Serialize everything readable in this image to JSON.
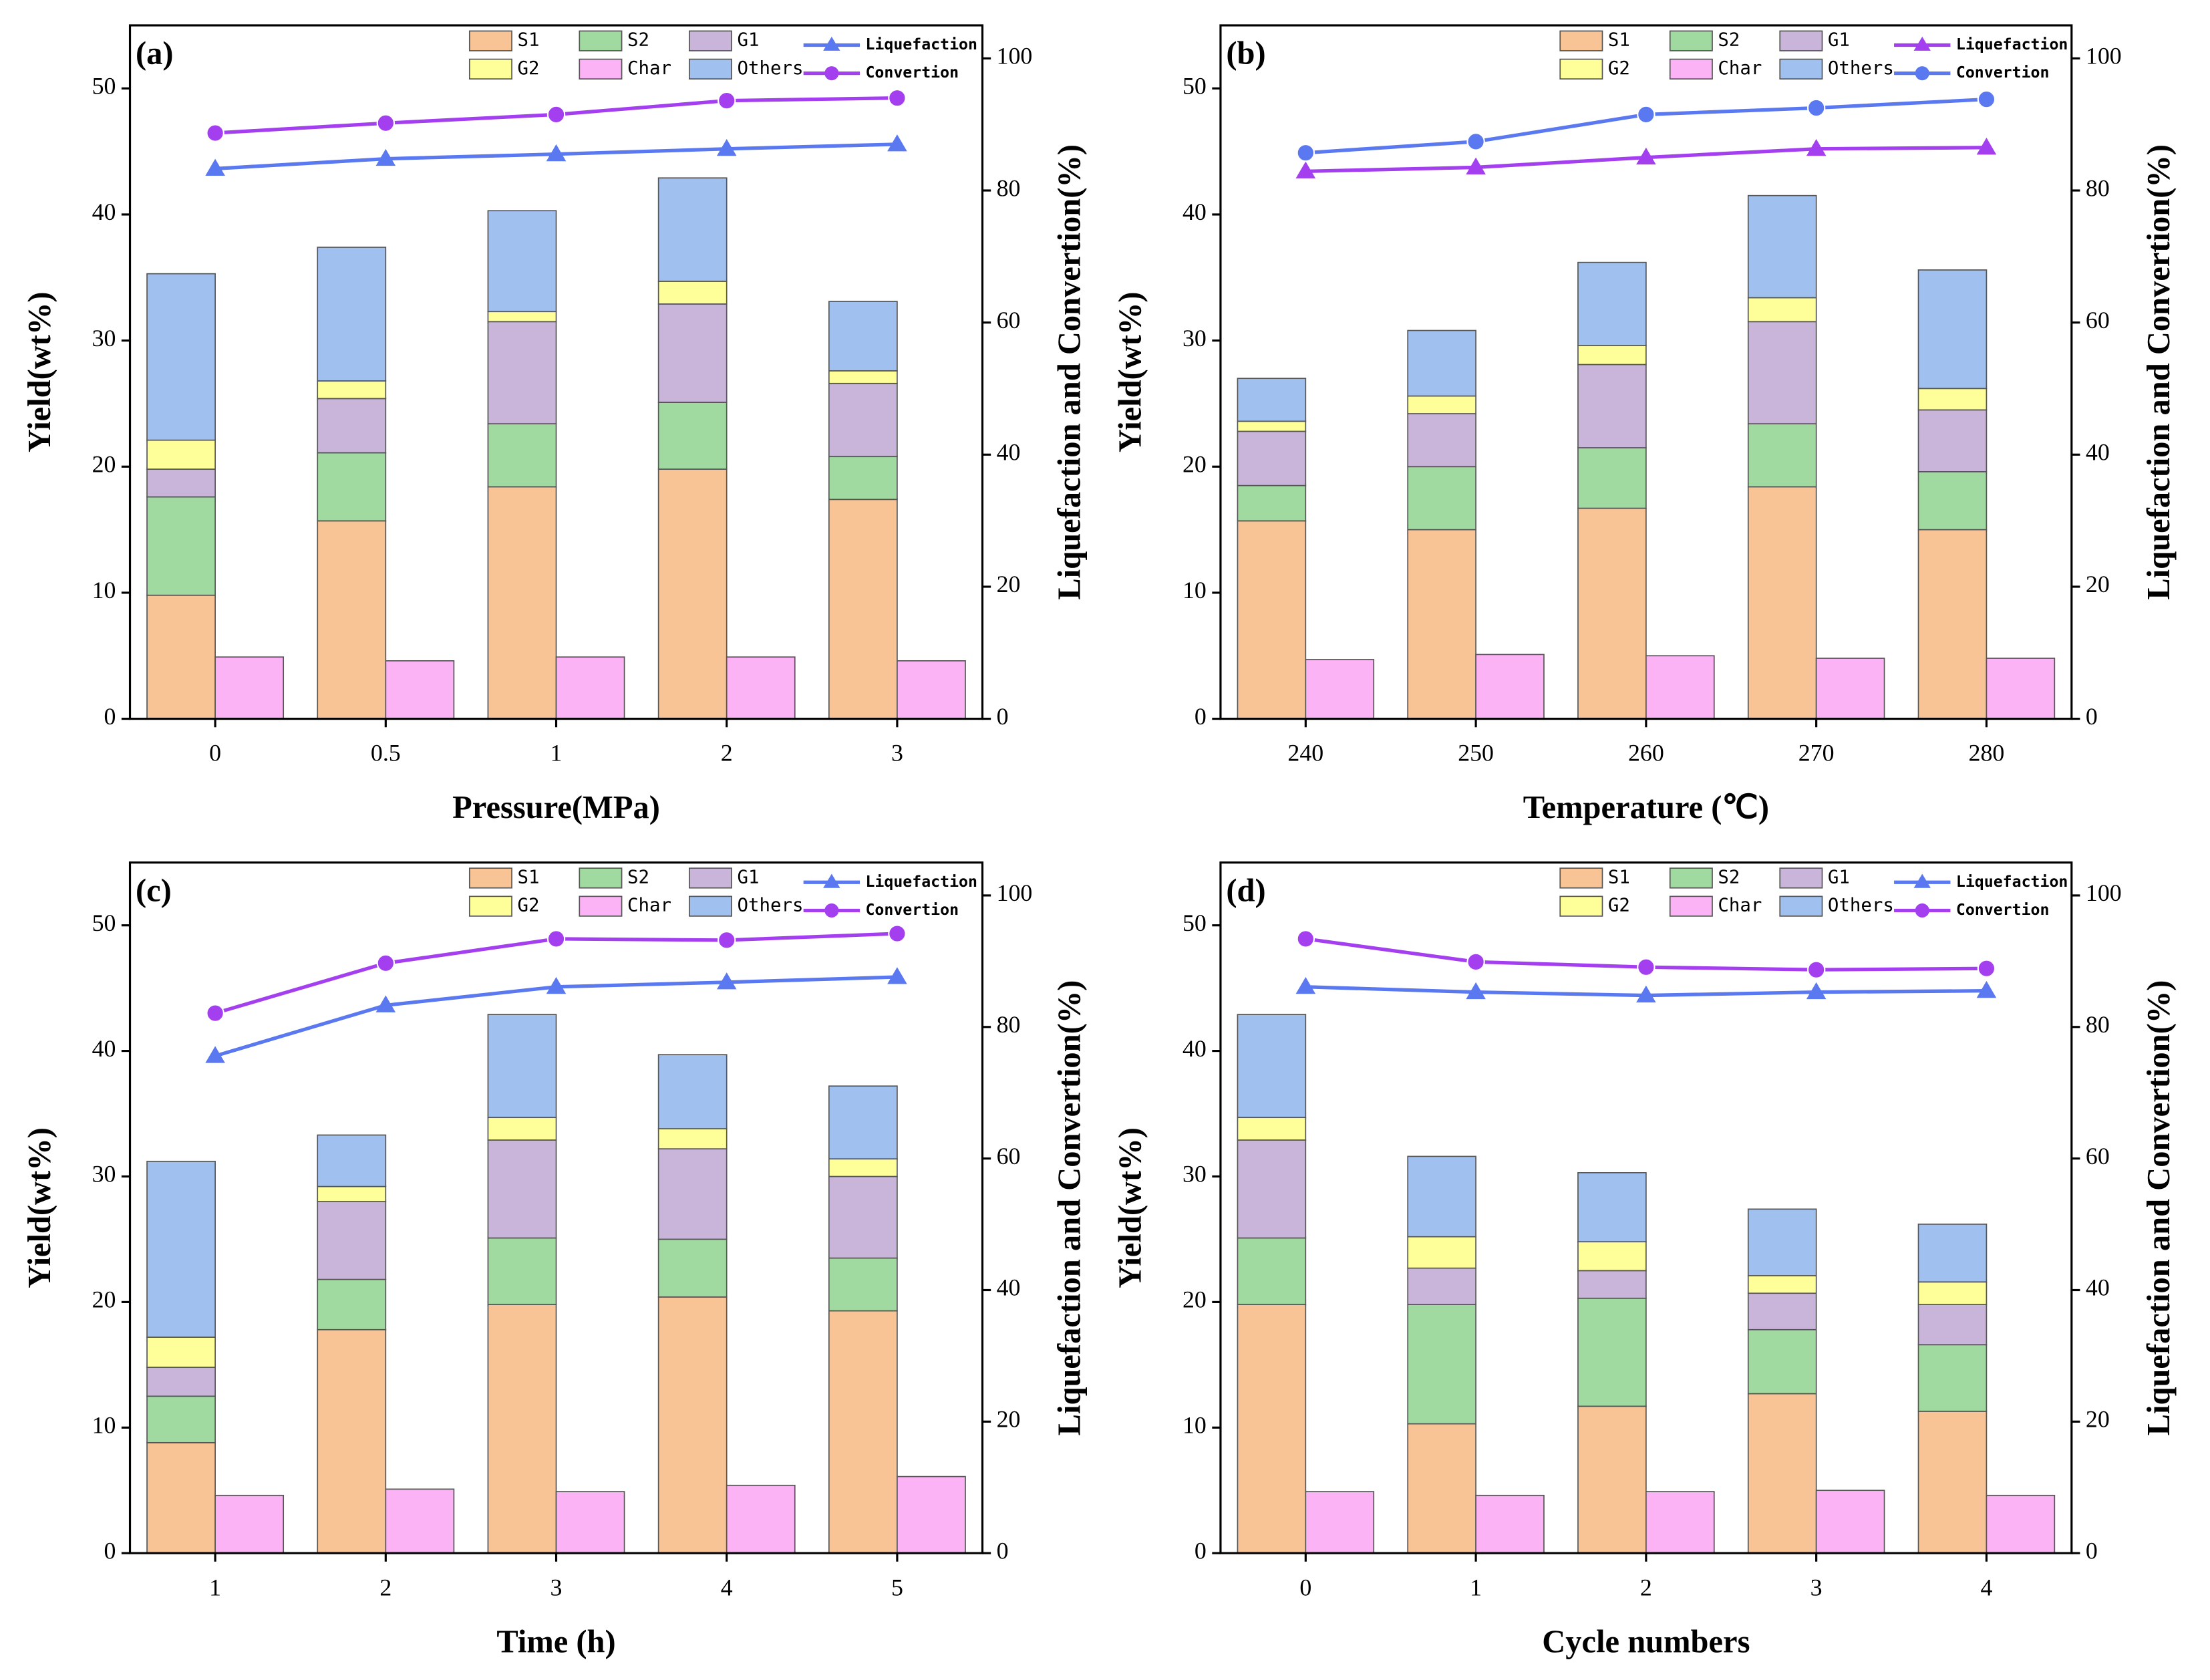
{
  "chart_data": [
    {
      "type": "combo",
      "label": "(a)",
      "x_label": "Pressure(MPa)",
      "y_label": "Yield(wt%)",
      "y2_label": "Liquefaction and Convertion(%)",
      "categories": [
        "0",
        "0.5",
        "1",
        "2",
        "3"
      ],
      "ylim": [
        0,
        55
      ],
      "yticks": [
        0,
        10,
        20,
        30,
        40,
        50
      ],
      "y2lim": [
        0,
        105
      ],
      "y2ticks": [
        0,
        20,
        40,
        60,
        80,
        100
      ],
      "series": [
        {
          "name": "S1",
          "kind": "bar",
          "stack": 0,
          "color": "#f8c496",
          "values": [
            9.8,
            15.7,
            18.4,
            19.8,
            17.4
          ]
        },
        {
          "name": "S2",
          "kind": "bar",
          "stack": 0,
          "color": "#a0daa0",
          "values": [
            7.8,
            5.4,
            5.0,
            5.3,
            3.4
          ]
        },
        {
          "name": "G1",
          "kind": "bar",
          "stack": 0,
          "color": "#c9b5da",
          "values": [
            2.2,
            4.3,
            8.1,
            7.8,
            5.8
          ]
        },
        {
          "name": "G2",
          "kind": "bar",
          "stack": 1,
          "color": "#ffff9a",
          "values": [
            2.3,
            1.4,
            0.8,
            1.8,
            1.0
          ]
        },
        {
          "name": "Char",
          "kind": "bar",
          "stack": 2,
          "color": "#fbb3f5",
          "values": [
            4.9,
            4.6,
            4.9,
            4.9,
            4.6
          ]
        },
        {
          "name": "Others",
          "kind": "bar",
          "stack": 1,
          "color": "#a0c0f0",
          "values": [
            13.2,
            10.6,
            8.0,
            8.2,
            5.5
          ]
        },
        {
          "name": "Liquefaction",
          "kind": "line",
          "axis": "y2",
          "marker": "triangle",
          "color": "#5a78f0",
          "values": [
            83.3,
            84.8,
            85.5,
            86.3,
            87.0
          ]
        },
        {
          "name": "Convertion",
          "kind": "line",
          "axis": "y2",
          "marker": "circle",
          "color": "#a43ff0",
          "values": [
            88.7,
            90.2,
            91.5,
            93.6,
            94.0
          ]
        }
      ]
    },
    {
      "type": "combo",
      "label": "(b)",
      "x_label": "Temperature (℃)",
      "y_label": "Yield(wt%)",
      "y2_label": "Liquefaction and Convertion(%)",
      "categories": [
        "240",
        "250",
        "260",
        "270",
        "280"
      ],
      "ylim": [
        0,
        55
      ],
      "yticks": [
        0,
        10,
        20,
        30,
        40,
        50
      ],
      "y2lim": [
        0,
        105
      ],
      "y2ticks": [
        0,
        20,
        40,
        60,
        80,
        100
      ],
      "series": [
        {
          "name": "S1",
          "kind": "bar",
          "stack": 0,
          "color": "#f8c496",
          "values": [
            15.7,
            15.0,
            16.7,
            18.4,
            15.0
          ]
        },
        {
          "name": "S2",
          "kind": "bar",
          "stack": 0,
          "color": "#a0daa0",
          "values": [
            2.8,
            5.0,
            4.8,
            5.0,
            4.6
          ]
        },
        {
          "name": "G1",
          "kind": "bar",
          "stack": 0,
          "color": "#c9b5da",
          "values": [
            4.3,
            4.2,
            6.6,
            8.1,
            4.9
          ]
        },
        {
          "name": "G2",
          "kind": "bar",
          "stack": 1,
          "color": "#ffff9a",
          "values": [
            0.8,
            1.4,
            1.5,
            1.9,
            1.7
          ]
        },
        {
          "name": "Char",
          "kind": "bar",
          "stack": 2,
          "color": "#fbb3f5",
          "values": [
            4.7,
            5.1,
            5.0,
            4.8,
            4.8
          ]
        },
        {
          "name": "Others",
          "kind": "bar",
          "stack": 1,
          "color": "#a0c0f0",
          "values": [
            3.4,
            5.2,
            6.6,
            8.1,
            9.4
          ]
        },
        {
          "name": "Liquefaction",
          "kind": "line",
          "axis": "y2",
          "marker": "triangle",
          "color": "#a43ff0",
          "values": [
            82.9,
            83.5,
            85.0,
            86.3,
            86.5
          ]
        },
        {
          "name": "Convertion",
          "kind": "line",
          "axis": "y2",
          "marker": "circle",
          "color": "#5a78f0",
          "values": [
            85.7,
            87.4,
            91.5,
            92.5,
            93.8
          ]
        }
      ]
    },
    {
      "type": "combo",
      "label": "(c)",
      "x_label": "Time (h)",
      "y_label": "Yield(wt%)",
      "y2_label": "Liquefaction and Convertion(%)",
      "categories": [
        "1",
        "2",
        "3",
        "4",
        "5"
      ],
      "ylim": [
        0,
        55
      ],
      "yticks": [
        0,
        10,
        20,
        30,
        40,
        50
      ],
      "y2lim": [
        0,
        105
      ],
      "y2ticks": [
        0,
        20,
        40,
        60,
        80,
        100
      ],
      "series": [
        {
          "name": "S1",
          "kind": "bar",
          "stack": 0,
          "color": "#f8c496",
          "values": [
            8.8,
            17.8,
            19.8,
            20.4,
            19.3
          ]
        },
        {
          "name": "S2",
          "kind": "bar",
          "stack": 0,
          "color": "#a0daa0",
          "values": [
            3.7,
            4.0,
            5.3,
            4.6,
            4.2
          ]
        },
        {
          "name": "G1",
          "kind": "bar",
          "stack": 0,
          "color": "#c9b5da",
          "values": [
            2.3,
            6.2,
            7.8,
            7.2,
            6.5
          ]
        },
        {
          "name": "G2",
          "kind": "bar",
          "stack": 1,
          "color": "#ffff9a",
          "values": [
            2.4,
            1.2,
            1.8,
            1.6,
            1.4
          ]
        },
        {
          "name": "Char",
          "kind": "bar",
          "stack": 2,
          "color": "#fbb3f5",
          "values": [
            4.6,
            5.1,
            4.9,
            5.4,
            6.1
          ]
        },
        {
          "name": "Others",
          "kind": "bar",
          "stack": 1,
          "color": "#a0c0f0",
          "values": [
            14.0,
            4.1,
            8.2,
            5.9,
            5.8
          ]
        },
        {
          "name": "Liquefaction",
          "kind": "line",
          "axis": "y2",
          "marker": "triangle",
          "color": "#5a78f0",
          "values": [
            75.6,
            83.3,
            86.1,
            86.8,
            87.6
          ]
        },
        {
          "name": "Convertion",
          "kind": "line",
          "axis": "y2",
          "marker": "circle",
          "color": "#a43ff0",
          "values": [
            82.1,
            89.7,
            93.4,
            93.2,
            94.2
          ]
        }
      ]
    },
    {
      "type": "combo",
      "label": "(d)",
      "x_label": "Cycle numbers",
      "y_label": "Yield(wt%)",
      "y2_label": "Liquefaction and Convertion(%)",
      "categories": [
        "0",
        "1",
        "2",
        "3",
        "4"
      ],
      "ylim": [
        0,
        55
      ],
      "yticks": [
        0,
        10,
        20,
        30,
        40,
        50
      ],
      "y2lim": [
        0,
        105
      ],
      "y2ticks": [
        0,
        20,
        40,
        60,
        80,
        100
      ],
      "series": [
        {
          "name": "S1",
          "kind": "bar",
          "stack": 0,
          "color": "#f8c496",
          "values": [
            19.8,
            10.3,
            11.7,
            12.7,
            11.3
          ]
        },
        {
          "name": "S2",
          "kind": "bar",
          "stack": 0,
          "color": "#a0daa0",
          "values": [
            5.3,
            9.5,
            8.6,
            5.1,
            5.3
          ]
        },
        {
          "name": "G1",
          "kind": "bar",
          "stack": 0,
          "color": "#c9b5da",
          "values": [
            7.8,
            2.9,
            2.2,
            2.9,
            3.2
          ]
        },
        {
          "name": "G2",
          "kind": "bar",
          "stack": 1,
          "color": "#ffff9a",
          "values": [
            1.8,
            2.5,
            2.3,
            1.4,
            1.8
          ]
        },
        {
          "name": "Char",
          "kind": "bar",
          "stack": 2,
          "color": "#fbb3f5",
          "values": [
            4.9,
            4.6,
            4.9,
            5.0,
            4.6
          ]
        },
        {
          "name": "Others",
          "kind": "bar",
          "stack": 1,
          "color": "#a0c0f0",
          "values": [
            8.2,
            6.4,
            5.5,
            5.3,
            4.6
          ]
        },
        {
          "name": "Liquefaction",
          "kind": "line",
          "axis": "y2",
          "marker": "triangle",
          "color": "#5a78f0",
          "values": [
            86.1,
            85.3,
            84.8,
            85.3,
            85.5
          ]
        },
        {
          "name": "Convertion",
          "kind": "line",
          "axis": "y2",
          "marker": "circle",
          "color": "#a43ff0",
          "values": [
            93.4,
            89.9,
            89.1,
            88.7,
            88.9
          ]
        }
      ]
    }
  ]
}
